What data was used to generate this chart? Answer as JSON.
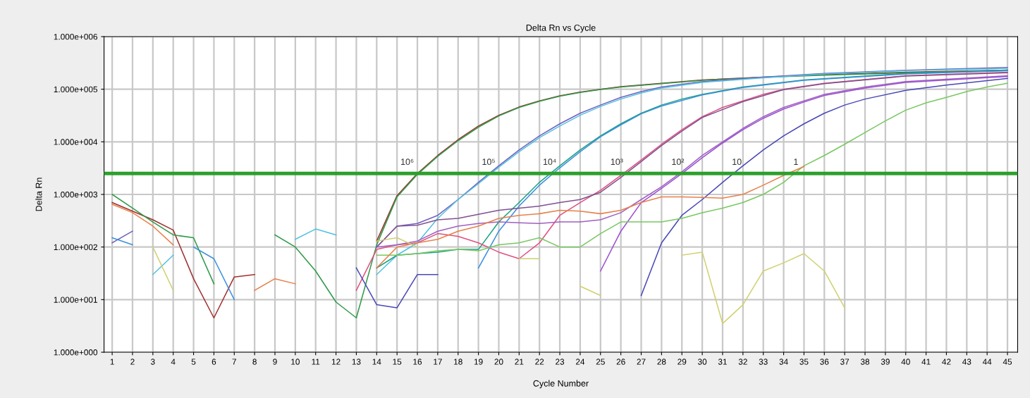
{
  "chart_data": {
    "type": "line",
    "title": "Delta Rn vs Cycle",
    "xlabel": "Cycle Number",
    "ylabel": "Delta Rn",
    "log": "y",
    "grid": true,
    "marker": "none",
    "line_style": "solid",
    "xlim": [
      0.6,
      45.5
    ],
    "xticks": [
      1,
      2,
      3,
      4,
      5,
      6,
      7,
      8,
      9,
      10,
      11,
      12,
      13,
      14,
      15,
      16,
      17,
      18,
      19,
      20,
      21,
      22,
      23,
      24,
      25,
      26,
      27,
      28,
      29,
      30,
      31,
      32,
      33,
      34,
      35,
      36,
      37,
      38,
      39,
      40,
      41,
      42,
      43,
      44,
      45
    ],
    "ylim": [
      1,
      1000000
    ],
    "yticks": [
      {
        "value": 1,
        "label": "1.000e+000"
      },
      {
        "value": 10,
        "label": "1.000e+001"
      },
      {
        "value": 100,
        "label": "1.000e+002"
      },
      {
        "value": 1000,
        "label": "1.000e+003"
      },
      {
        "value": 10000,
        "label": "1.000e+004"
      },
      {
        "value": 100000,
        "label": "1.000e+005"
      },
      {
        "value": 1000000,
        "label": "1.000e+006"
      }
    ],
    "ref_lines": [
      {
        "axis": "y",
        "value": 2500,
        "color": "#2ca02c",
        "line_style": "solid"
      }
    ],
    "annotations": [
      {
        "text": "10⁶",
        "x": 15.5,
        "y": 2500
      },
      {
        "text": "10⁵",
        "x": 19.5,
        "y": 2500
      },
      {
        "text": "10⁴",
        "x": 22.5,
        "y": 2500
      },
      {
        "text": "10³",
        "x": 25.8,
        "y": 2500
      },
      {
        "text": "10²",
        "x": 28.8,
        "y": 2500
      },
      {
        "text": "10",
        "x": 31.7,
        "y": 2500
      },
      {
        "text": "1",
        "x": 34.6,
        "y": 2500
      }
    ],
    "series": [
      {
        "color": "#a03030",
        "x": [
          1,
          2,
          3,
          4,
          5,
          6,
          7,
          8,
          9,
          14,
          15,
          16,
          17,
          18,
          19,
          20,
          21,
          22,
          23,
          24,
          25,
          26,
          28,
          30,
          33,
          36,
          40,
          45
        ],
        "values": [
          700,
          480,
          330,
          210,
          25,
          4.5,
          27,
          30,
          null,
          130,
          950,
          2500,
          5500,
          11000,
          20000,
          32000,
          46000,
          60000,
          75000,
          88000,
          100000,
          112000,
          130000,
          150000,
          170000,
          190000,
          210000,
          230000
        ]
      },
      {
        "color": "#2e9a48",
        "x": [
          1,
          2,
          3,
          4,
          5,
          6,
          7,
          9,
          10,
          11,
          12,
          13,
          14,
          15,
          16,
          17,
          18,
          19,
          20,
          21,
          22,
          23,
          24,
          25,
          26,
          28,
          30,
          33,
          36,
          40,
          45
        ],
        "values": [
          1000,
          550,
          300,
          170,
          150,
          20,
          null,
          170,
          100,
          35,
          9,
          4.5,
          110,
          900,
          2400,
          5300,
          10500,
          19000,
          31000,
          45000,
          59000,
          74000,
          87000,
          99000,
          110000,
          128000,
          148000,
          168000,
          185000,
          205000,
          225000
        ]
      },
      {
        "color": "#7060c0",
        "x": [
          1,
          2,
          3,
          14,
          15,
          16,
          17,
          18,
          19,
          20,
          21,
          22,
          23,
          24,
          25,
          26,
          27,
          28,
          30,
          33,
          36,
          40,
          45
        ],
        "values": [
          120,
          200,
          null,
          100,
          250,
          280,
          400,
          800,
          1700,
          3500,
          7000,
          13000,
          22000,
          35000,
          50000,
          70000,
          90000,
          110000,
          140000,
          170000,
          200000,
          230000,
          260000
        ]
      },
      {
        "color": "#50c0e0",
        "x": [
          3,
          4,
          5,
          10,
          11,
          12,
          13,
          14,
          15,
          16,
          17,
          18,
          19,
          20,
          21,
          22,
          23,
          24,
          25,
          26,
          27,
          28,
          30,
          33,
          36,
          40,
          45
        ],
        "values": [
          30,
          70,
          null,
          140,
          220,
          170,
          null,
          30,
          70,
          120,
          350,
          800,
          1600,
          3300,
          6500,
          12000,
          20000,
          32000,
          47000,
          65000,
          85000,
          105000,
          135000,
          165000,
          195000,
          225000,
          250000
        ]
      },
      {
        "color": "#1aa080",
        "x": [
          14,
          15,
          16,
          17,
          18,
          19,
          20,
          21,
          22,
          23,
          24,
          25,
          26,
          27,
          28,
          29,
          30,
          32,
          35,
          40,
          45
        ],
        "values": [
          40,
          70,
          75,
          80,
          90,
          90,
          300,
          700,
          1700,
          3500,
          7000,
          13000,
          22000,
          35000,
          50000,
          65000,
          80000,
          110000,
          150000,
          200000,
          230000
        ]
      },
      {
        "color": "#3a90e0",
        "x": [
          1,
          2,
          3,
          5,
          6,
          7,
          8,
          19,
          20,
          21,
          22,
          23,
          24,
          25,
          26,
          27,
          28,
          30,
          32,
          35,
          40,
          45
        ],
        "values": [
          150,
          110,
          null,
          100,
          60,
          10,
          null,
          40,
          200,
          600,
          1500,
          3200,
          6500,
          12500,
          21000,
          34000,
          48000,
          78000,
          108000,
          148000,
          195000,
          225000
        ]
      },
      {
        "color": "#e05080",
        "x": [
          13,
          14,
          15,
          16,
          17,
          18,
          19,
          20,
          21,
          22,
          23,
          24,
          25,
          26,
          27,
          28,
          29,
          30,
          31,
          32,
          33,
          34,
          36,
          40,
          45
        ],
        "values": [
          15,
          90,
          110,
          120,
          180,
          160,
          120,
          80,
          60,
          120,
          400,
          700,
          1200,
          2300,
          4500,
          9000,
          17000,
          30000,
          45000,
          60000,
          80000,
          100000,
          130000,
          180000,
          210000
        ]
      },
      {
        "color": "#805090",
        "x": [
          14,
          15,
          16,
          17,
          18,
          19,
          20,
          21,
          22,
          23,
          24,
          25,
          26,
          27,
          28,
          29,
          30,
          32,
          34,
          36,
          40,
          45
        ],
        "values": [
          100,
          250,
          260,
          330,
          350,
          420,
          500,
          550,
          600,
          700,
          800,
          1100,
          2100,
          4200,
          8500,
          16000,
          29000,
          58000,
          98000,
          128000,
          178000,
          205000
        ]
      },
      {
        "color": "#a060c0",
        "x": [
          14,
          15,
          16,
          17,
          18,
          19,
          20,
          21,
          22,
          23,
          24,
          25,
          26,
          27,
          28,
          29,
          30,
          31,
          32,
          33,
          34,
          35,
          36,
          38,
          40,
          45
        ],
        "values": [
          100,
          110,
          130,
          200,
          250,
          280,
          300,
          290,
          280,
          300,
          300,
          330,
          450,
          800,
          1400,
          2700,
          5500,
          10000,
          18000,
          30000,
          45000,
          60000,
          80000,
          110000,
          140000,
          180000
        ]
      },
      {
        "color": "#9a50d0",
        "x": [
          25,
          26,
          27,
          28,
          29,
          30,
          31,
          32,
          33,
          34,
          35,
          36,
          38,
          40,
          45
        ],
        "values": [
          35,
          200,
          700,
          1300,
          2500,
          5000,
          9500,
          17000,
          28000,
          42000,
          57000,
          76000,
          105000,
          135000,
          175000
        ]
      },
      {
        "color": "#4848b8",
        "x": [
          13,
          14,
          15,
          16,
          17,
          18,
          27,
          28,
          29,
          30,
          31,
          32,
          33,
          34,
          35,
          36,
          37,
          38,
          40,
          42,
          45
        ],
        "values": [
          40,
          8,
          7,
          30,
          30,
          null,
          12,
          120,
          400,
          800,
          1700,
          3500,
          7000,
          13000,
          22000,
          35000,
          50000,
          65000,
          95000,
          120000,
          160000
        ]
      },
      {
        "color": "#78c860",
        "x": [
          14,
          15,
          16,
          17,
          18,
          19,
          20,
          21,
          22,
          23,
          24,
          25,
          26,
          27,
          28,
          29,
          30,
          31,
          32,
          33,
          34,
          35,
          36,
          37,
          38,
          39,
          40,
          41,
          42,
          43,
          44,
          45
        ],
        "values": [
          70,
          70,
          75,
          85,
          90,
          85,
          110,
          120,
          150,
          100,
          100,
          180,
          300,
          300,
          300,
          350,
          450,
          550,
          700,
          1000,
          1700,
          3500,
          5500,
          9000,
          15000,
          25000,
          40000,
          55000,
          70000,
          90000,
          110000,
          130000
        ]
      },
      {
        "color": "#e8804a",
        "x": [
          1,
          2,
          3,
          4,
          5,
          8,
          9,
          10,
          11,
          14,
          15,
          16,
          17,
          18,
          19,
          20,
          21,
          22,
          23,
          24,
          25,
          26,
          27,
          28,
          29,
          30,
          31,
          32,
          33,
          34,
          35
        ],
        "values": [
          650,
          450,
          250,
          110,
          null,
          15,
          25,
          20,
          null,
          40,
          100,
          120,
          140,
          200,
          250,
          350,
          400,
          430,
          500,
          480,
          430,
          500,
          700,
          900,
          900,
          880,
          850,
          1000,
          1500,
          2300,
          3400
        ]
      },
      {
        "color": "#d0d070",
        "x": [
          3,
          4,
          5,
          14,
          15,
          16,
          17,
          21,
          22,
          23,
          24,
          25,
          26,
          29,
          30,
          31,
          32,
          33,
          34,
          35,
          36,
          37
        ],
        "values": [
          100,
          15,
          null,
          130,
          150,
          100,
          null,
          60,
          60,
          null,
          18,
          12,
          null,
          70,
          80,
          3.5,
          8,
          35,
          50,
          75,
          35,
          7
        ]
      }
    ]
  }
}
